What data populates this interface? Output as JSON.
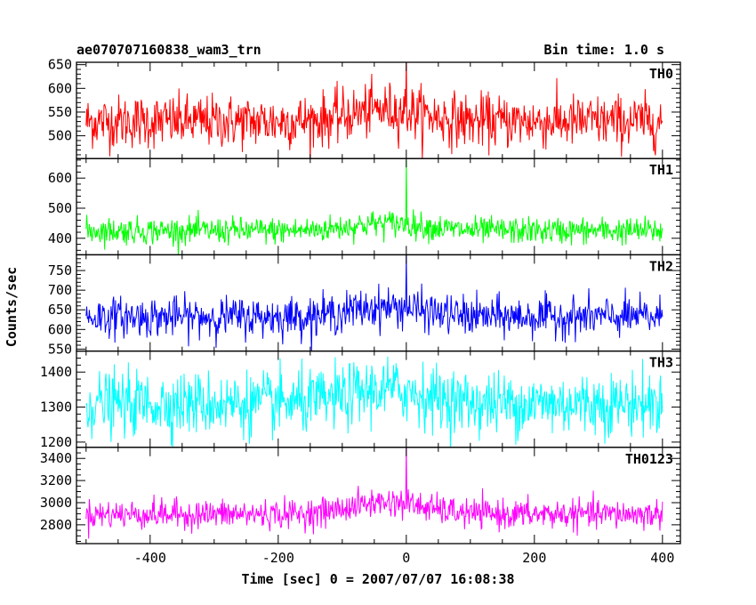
{
  "header": {
    "title": "ae070707160838_wam3_trn",
    "bin_time": "Bin time: 1.0 s"
  },
  "chart_data": {
    "type": "line",
    "title": "ae070707160838_wam3_trn",
    "xlabel": "Time [sec] 0 = 2007/07/07 16:08:38",
    "ylabel": "Counts/sec",
    "xlim": [
      -515,
      428
    ],
    "x_ticks": [
      -400,
      -200,
      0,
      200,
      400
    ],
    "x_minor_step": 50,
    "grid": false,
    "panels": [
      {
        "name": "TH0",
        "color": "#ff0000",
        "ylim": [
          452,
          655
        ],
        "y_ticks": [
          500,
          550,
          600,
          650
        ],
        "y_minor_step": 10,
        "y_tick_labels": [
          "500",
          "550",
          "600",
          "650"
        ],
        "x_start": -500,
        "x_end": 400,
        "baseline": 530,
        "noise_sd": 28,
        "bump": {
          "center": -30,
          "width": 80,
          "amp": 25
        },
        "spike": {
          "x": 0,
          "value": 668
        }
      },
      {
        "name": "TH1",
        "color": "#00ff00",
        "ylim": [
          345,
          665
        ],
        "y_ticks": [
          400,
          500,
          600
        ],
        "y_minor_step": 20,
        "y_tick_labels": [
          "400",
          "500",
          "600"
        ],
        "x_start": -500,
        "x_end": 400,
        "baseline": 425,
        "noise_sd": 22,
        "bump": {
          "center": -30,
          "width": 80,
          "amp": 25
        },
        "spike": {
          "x": 0,
          "value": 660
        }
      },
      {
        "name": "TH2",
        "color": "#0000ff",
        "ylim": [
          545,
          790
        ],
        "y_ticks": [
          550,
          600,
          650,
          700,
          750
        ],
        "y_minor_step": 10,
        "y_tick_labels": [
          "550",
          "600",
          "650",
          "700",
          "750"
        ],
        "x_start": -500,
        "x_end": 400,
        "baseline": 632,
        "noise_sd": 25,
        "bump": {
          "center": -30,
          "width": 80,
          "amp": 25
        },
        "spike": {
          "x": 0,
          "value": 790
        }
      },
      {
        "name": "TH3",
        "color": "#00ffff",
        "ylim": [
          1185,
          1460
        ],
        "y_ticks": [
          1200,
          1300,
          1400
        ],
        "y_minor_step": 20,
        "y_tick_labels": [
          "1200",
          "1300",
          "1400"
        ],
        "x_start": -500,
        "x_end": 400,
        "baseline": 1310,
        "noise_sd": 45,
        "bump": {
          "center": -30,
          "width": 80,
          "amp": 40
        }
      },
      {
        "name": "TH0123",
        "color": "#ff00ff",
        "ylim": [
          2630,
          3500
        ],
        "y_ticks": [
          2800,
          3000,
          3200,
          3400
        ],
        "y_minor_step": 50,
        "y_tick_labels": [
          "2800",
          "3000",
          "3200",
          "3400"
        ],
        "x_start": -500,
        "x_end": 400,
        "baseline": 2895,
        "noise_sd": 65,
        "bump": {
          "center": -30,
          "width": 80,
          "amp": 110
        },
        "spike": {
          "x": 0,
          "value": 3500
        }
      }
    ]
  }
}
